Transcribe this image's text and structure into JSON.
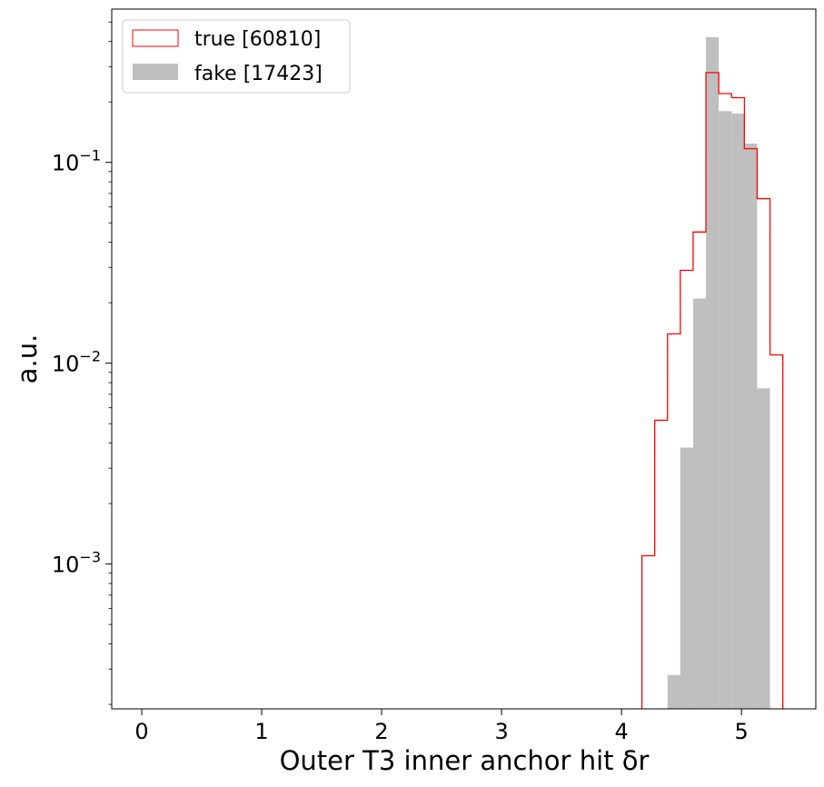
{
  "chart_data": {
    "type": "bar",
    "histogram": true,
    "xlabel": "Outer T3 inner anchor hit δr",
    "ylabel": "a.u.",
    "yscale": "log",
    "xlim": [
      -0.25,
      5.62
    ],
    "ylim": [
      0.00019,
      0.58
    ],
    "xticks": [
      0,
      1,
      2,
      3,
      4,
      5
    ],
    "xtick_labels": [
      "0",
      "1",
      "2",
      "3",
      "4",
      "5"
    ],
    "yticks": [
      {
        "value": 0.001,
        "base": "10",
        "exp": "−3"
      },
      {
        "value": 0.01,
        "base": "10",
        "exp": "−2"
      },
      {
        "value": 0.1,
        "base": "10",
        "exp": "−1"
      }
    ],
    "grid": false,
    "legend_position": "upper-left",
    "bin_width": 0.1068,
    "series": [
      {
        "name": "true [60810]",
        "style": "step",
        "color": "#ff0000",
        "bin_left_edges": [
          4.17,
          4.277,
          4.384,
          4.49,
          4.597,
          4.704,
          4.811,
          4.918,
          5.024,
          5.131,
          5.238
        ],
        "values": [
          0.0011,
          0.0052,
          0.014,
          0.029,
          0.045,
          0.28,
          0.22,
          0.21,
          0.117,
          0.066,
          0.011
        ]
      },
      {
        "name": "fake [17423]",
        "style": "filled",
        "color": "#bfbfbf",
        "bin_left_edges": [
          4.384,
          4.49,
          4.597,
          4.704,
          4.811,
          4.918,
          5.024,
          5.131
        ],
        "values": [
          0.00028,
          0.0038,
          0.021,
          0.42,
          0.18,
          0.175,
          0.124,
          0.0075
        ]
      }
    ]
  }
}
